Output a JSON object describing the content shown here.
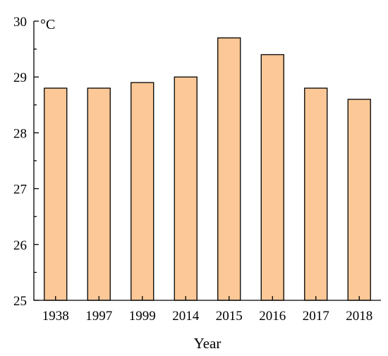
{
  "chart_data": {
    "type": "bar",
    "categories": [
      "1938",
      "1997",
      "1999",
      "2014",
      "2015",
      "2016",
      "2017",
      "2018"
    ],
    "values": [
      28.8,
      28.8,
      28.9,
      29.0,
      29.7,
      29.4,
      28.8,
      28.6
    ],
    "title": "",
    "xlabel": "Year",
    "ylabel": "",
    "unit_label": "°C",
    "ylim": [
      25,
      30
    ],
    "yticks": [
      25,
      26,
      27,
      28,
      29,
      30
    ],
    "bar_color": "#fcc897",
    "grid": false,
    "legend": "none"
  }
}
